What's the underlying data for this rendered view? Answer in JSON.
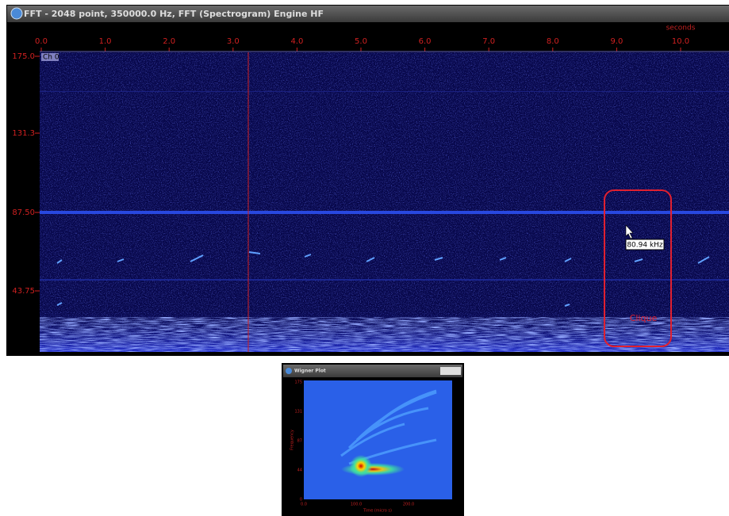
{
  "spectrogram_window": {
    "title": "FFT - 2048 point, 350000.0 Hz, FFT (Spectrogram) Engine HF",
    "time_unit": "seconds",
    "x_ticks": [
      "0.0",
      "1.0",
      "2.0",
      "3.0",
      "4.0",
      "5.0",
      "6.0",
      "7.0",
      "8.0",
      "9.0",
      "10.0"
    ],
    "y_ticks": [
      "175.0",
      "131.3",
      "87.50",
      "43.75"
    ],
    "channel": "Ch 0",
    "cursor_readout": "80.94 kHz",
    "annotation": "Clique"
  },
  "wigner_window": {
    "title": "Wigner Plot",
    "y_axis_label": "Frequency",
    "x_axis_label": "Time (micro s)",
    "y_ticks": [
      "175",
      "131",
      "87",
      "44",
      "0"
    ],
    "x_ticks": [
      "0.0",
      "100.0",
      "200.0"
    ]
  }
}
